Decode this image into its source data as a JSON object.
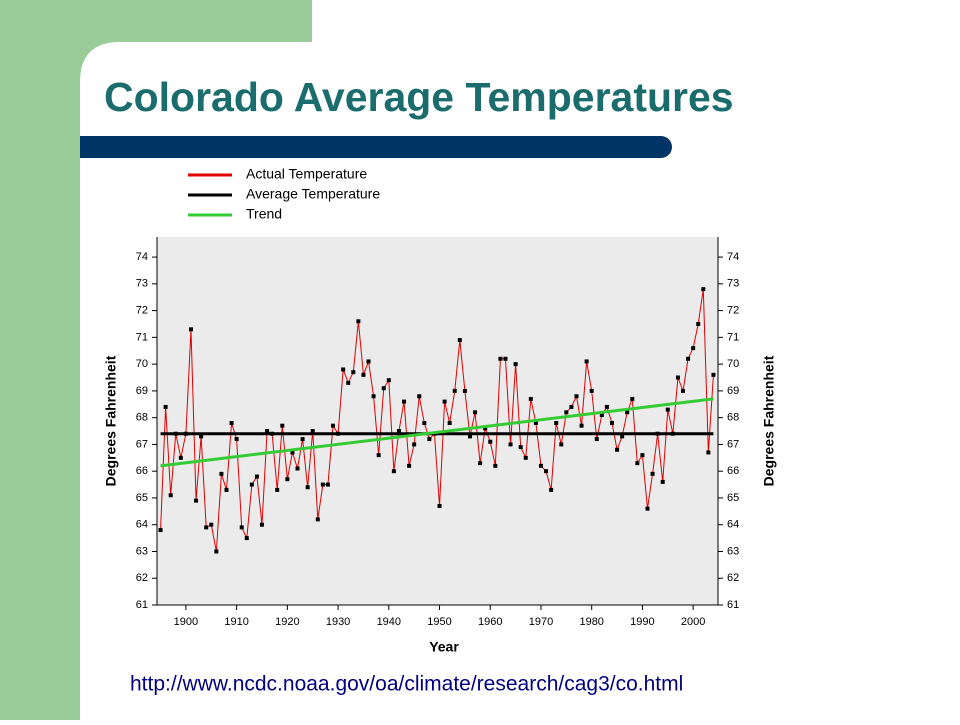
{
  "chart_data": {
    "type": "line",
    "title": "Colorado Average Temperatures",
    "xlabel": "Year",
    "ylabel": "Degrees Fahrenheit",
    "y2label": "Degrees Fahrenheit",
    "source": "http://www.ncdc.noaa.gov/oa/climate/research/cag3/co.html",
    "xlim": [
      1894.3,
      2004.9
    ],
    "xticks": [
      1900,
      1910,
      1920,
      1930,
      1940,
      1950,
      1960,
      1970,
      1980,
      1990,
      2000
    ],
    "ylim": [
      61,
      74.75
    ],
    "yticks": [
      61,
      62,
      63,
      64,
      65,
      66,
      67,
      68,
      69,
      70,
      71,
      72,
      73,
      74
    ],
    "y2lim": [
      61,
      74.75
    ],
    "y2ticks": [
      61,
      62,
      63,
      64,
      65,
      66,
      67,
      68,
      69,
      70,
      71,
      72,
      73,
      74
    ],
    "series": [
      {
        "name": "Actual Temperature",
        "color": "#e00000",
        "markers": true,
        "x": [
          1895,
          1896,
          1897,
          1898,
          1899,
          1900,
          1901,
          1902,
          1903,
          1904,
          1905,
          1906,
          1907,
          1908,
          1909,
          1910,
          1911,
          1912,
          1913,
          1914,
          1915,
          1916,
          1917,
          1918,
          1919,
          1920,
          1921,
          1922,
          1923,
          1924,
          1925,
          1926,
          1927,
          1928,
          1929,
          1930,
          1931,
          1932,
          1933,
          1934,
          1935,
          1936,
          1937,
          1938,
          1939,
          1940,
          1941,
          1942,
          1943,
          1944,
          1945,
          1946,
          1947,
          1948,
          1949,
          1950,
          1951,
          1952,
          1953,
          1954,
          1955,
          1956,
          1957,
          1958,
          1959,
          1960,
          1961,
          1962,
          1963,
          1964,
          1965,
          1966,
          1967,
          1968,
          1969,
          1970,
          1971,
          1972,
          1973,
          1974,
          1975,
          1976,
          1977,
          1978,
          1979,
          1980,
          1981,
          1982,
          1983,
          1984,
          1985,
          1986,
          1987,
          1988,
          1989,
          1990,
          1991,
          1992,
          1993,
          1994,
          1995,
          1996,
          1997,
          1998,
          1999,
          2000,
          2001,
          2002,
          2003,
          2004
        ],
        "values": [
          63.8,
          68.4,
          65.1,
          67.4,
          66.5,
          67.4,
          71.3,
          64.9,
          67.3,
          63.9,
          64.0,
          63.0,
          65.9,
          65.3,
          67.8,
          67.2,
          63.9,
          63.5,
          65.5,
          65.8,
          64.0,
          67.5,
          67.4,
          65.3,
          67.7,
          65.7,
          66.7,
          66.1,
          67.2,
          65.4,
          67.5,
          64.2,
          65.5,
          65.5,
          67.7,
          67.4,
          69.8,
          69.3,
          69.7,
          71.6,
          69.6,
          70.1,
          68.8,
          66.6,
          69.1,
          69.4,
          66.0,
          67.5,
          68.6,
          66.2,
          67.0,
          68.8,
          67.8,
          67.2,
          67.4,
          64.7,
          68.6,
          67.8,
          69.0,
          70.9,
          69.0,
          67.3,
          68.2,
          66.3,
          67.6,
          67.1,
          66.2,
          70.2,
          70.2,
          67.0,
          70.0,
          66.9,
          66.5,
          68.7,
          67.8,
          66.2,
          66.0,
          65.3,
          67.8,
          67.0,
          68.2,
          68.4,
          68.8,
          67.7,
          70.1,
          69.0,
          67.2,
          68.1,
          68.4,
          67.8,
          66.8,
          67.3,
          68.2,
          68.7,
          66.3,
          66.6,
          64.6,
          65.9,
          67.4,
          65.6,
          68.3,
          67.4,
          69.5,
          69.0,
          70.2,
          70.6,
          71.5,
          72.8,
          66.7,
          69.6
        ]
      },
      {
        "name": "Average Temperature",
        "color": "#000000",
        "x": [
          1895,
          2004
        ],
        "values": [
          67.4,
          67.4
        ]
      },
      {
        "name": "Trend",
        "color": "#33cc33",
        "x": [
          1895,
          2004
        ],
        "values": [
          66.2,
          68.7
        ]
      }
    ]
  }
}
